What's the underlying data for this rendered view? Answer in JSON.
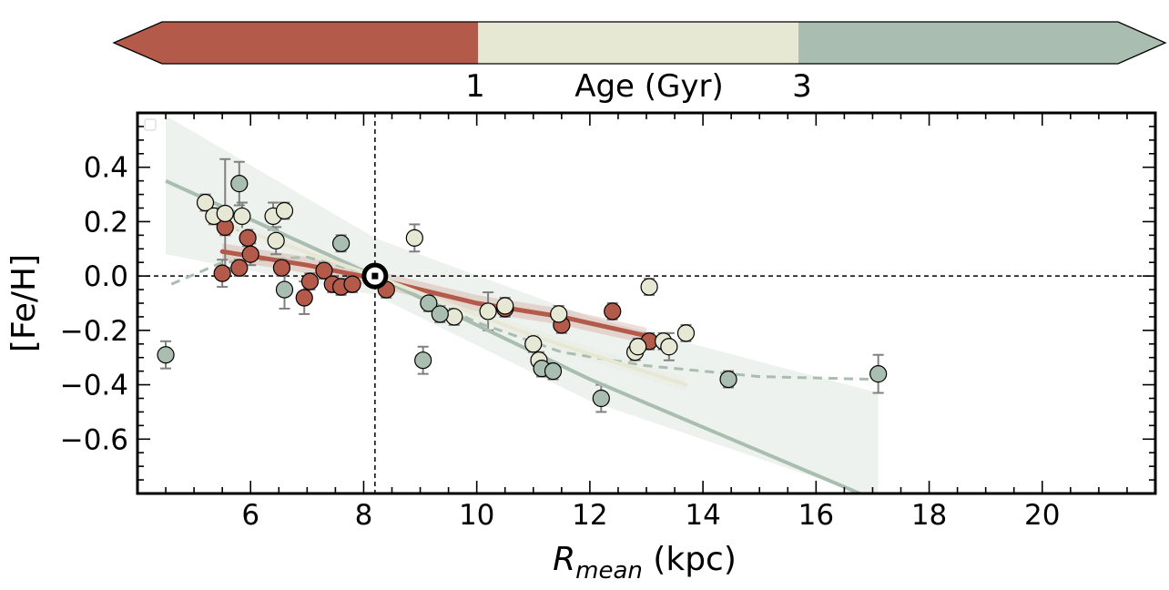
{
  "colors": {
    "young": "#b35a4a",
    "mid": "#e6e8d4",
    "old": "#a9bdb0",
    "band": "#eef2ee",
    "errorbar": "#808080"
  },
  "colorbar": {
    "ticks": [
      "1",
      "3"
    ],
    "label": "Age (Gyr)"
  },
  "chart_data": {
    "type": "scatter",
    "xlabel_main": "R",
    "xlabel_sub": "mean",
    "xlabel_unit": " (kpc)",
    "ylabel": "[Fe/H]",
    "xlim": [
      4.0,
      22.0
    ],
    "ylim": [
      -0.8,
      0.6
    ],
    "xticks": [
      6,
      8,
      10,
      12,
      14,
      16,
      18,
      20
    ],
    "yticks": [
      0.4,
      0.2,
      0.0,
      -0.2,
      -0.4,
      -0.6
    ],
    "ytick_labels": [
      "0.4",
      "0.2",
      "0.0",
      "−0.2",
      "−0.4",
      "−0.6"
    ],
    "sun": {
      "x": 8.2,
      "y": 0.0
    },
    "series": [
      {
        "color": "young",
        "points": [
          {
            "x": 5.5,
            "y": 0.01,
            "e": 0.05
          },
          {
            "x": 5.55,
            "y": 0.18,
            "e": 0.03
          },
          {
            "x": 5.8,
            "y": 0.03,
            "e": 0.03
          },
          {
            "x": 5.95,
            "y": 0.14,
            "e": 0.03
          },
          {
            "x": 6.0,
            "y": 0.08,
            "e": 0.04
          },
          {
            "x": 6.55,
            "y": 0.03,
            "e": 0.03
          },
          {
            "x": 6.95,
            "y": -0.08,
            "e": 0.06
          },
          {
            "x": 7.05,
            "y": -0.02,
            "e": 0.03
          },
          {
            "x": 7.3,
            "y": 0.02,
            "e": 0.03
          },
          {
            "x": 7.45,
            "y": -0.03,
            "e": 0.03
          },
          {
            "x": 7.6,
            "y": -0.04,
            "e": 0.03
          },
          {
            "x": 7.8,
            "y": -0.03,
            "e": 0.03
          },
          {
            "x": 8.4,
            "y": -0.05,
            "e": 0.03
          },
          {
            "x": 10.5,
            "y": -0.12,
            "e": 0.03
          },
          {
            "x": 11.5,
            "y": -0.18,
            "e": 0.03
          },
          {
            "x": 12.4,
            "y": -0.13,
            "e": 0.03
          },
          {
            "x": 13.05,
            "y": -0.24,
            "e": 0.03
          }
        ],
        "fit": [
          [
            5.5,
            0.09
          ],
          [
            7.0,
            0.04
          ],
          [
            8.2,
            -0.01
          ],
          [
            10.0,
            -0.1
          ],
          [
            11.5,
            -0.15
          ],
          [
            13.0,
            -0.22
          ]
        ]
      },
      {
        "color": "mid",
        "points": [
          {
            "x": 5.2,
            "y": 0.27,
            "e": 0.03
          },
          {
            "x": 5.35,
            "y": 0.22,
            "e": 0.03
          },
          {
            "x": 5.55,
            "y": 0.23,
            "e": 0.2
          },
          {
            "x": 5.85,
            "y": 0.22,
            "e": 0.05
          },
          {
            "x": 6.4,
            "y": 0.22,
            "e": 0.05
          },
          {
            "x": 6.45,
            "y": 0.13,
            "e": 0.05
          },
          {
            "x": 6.6,
            "y": 0.24,
            "e": 0.03
          },
          {
            "x": 8.9,
            "y": 0.14,
            "e": 0.05
          },
          {
            "x": 9.6,
            "y": -0.15,
            "e": 0.03
          },
          {
            "x": 10.2,
            "y": -0.13,
            "e": 0.07
          },
          {
            "x": 10.5,
            "y": -0.11,
            "e": 0.03
          },
          {
            "x": 11.0,
            "y": -0.25,
            "e": 0.03
          },
          {
            "x": 11.1,
            "y": -0.31,
            "e": 0.03
          },
          {
            "x": 11.45,
            "y": -0.14,
            "e": 0.03
          },
          {
            "x": 12.8,
            "y": -0.28,
            "e": 0.03
          },
          {
            "x": 12.85,
            "y": -0.26,
            "e": 0.03
          },
          {
            "x": 13.05,
            "y": -0.04,
            "e": 0.03
          },
          {
            "x": 13.3,
            "y": -0.24,
            "e": 0.03
          },
          {
            "x": 13.4,
            "y": -0.26,
            "e": 0.05
          },
          {
            "x": 13.7,
            "y": -0.21,
            "e": 0.03
          }
        ],
        "fit": [
          [
            5.3,
            0.21
          ],
          [
            8.2,
            0.0
          ],
          [
            11.0,
            -0.22
          ],
          [
            13.7,
            -0.4
          ]
        ]
      },
      {
        "color": "old",
        "points": [
          {
            "x": 4.5,
            "y": -0.29,
            "e": 0.05
          },
          {
            "x": 5.8,
            "y": 0.34,
            "e": 0.08
          },
          {
            "x": 6.6,
            "y": -0.05,
            "e": 0.07
          },
          {
            "x": 7.6,
            "y": 0.12,
            "e": 0.03
          },
          {
            "x": 9.05,
            "y": -0.31,
            "e": 0.05
          },
          {
            "x": 9.15,
            "y": -0.1,
            "e": 0.03
          },
          {
            "x": 9.35,
            "y": -0.14,
            "e": 0.03
          },
          {
            "x": 11.15,
            "y": -0.34,
            "e": 0.03
          },
          {
            "x": 11.35,
            "y": -0.35,
            "e": 0.03
          },
          {
            "x": 12.2,
            "y": -0.45,
            "e": 0.05
          },
          {
            "x": 14.45,
            "y": -0.38,
            "e": 0.03
          },
          {
            "x": 17.1,
            "y": -0.36,
            "e": 0.07
          }
        ],
        "fit": [
          [
            4.5,
            0.35
          ],
          [
            8.2,
            0.0
          ],
          [
            12.0,
            -0.38
          ],
          [
            17.0,
            -0.82
          ]
        ],
        "dashed_fit": [
          [
            4.6,
            -0.03
          ],
          [
            5.5,
            0.05
          ],
          [
            7.0,
            0.07
          ],
          [
            8.2,
            0.0
          ],
          [
            10.0,
            -0.17
          ],
          [
            11.5,
            -0.28
          ],
          [
            13.0,
            -0.33
          ],
          [
            15.0,
            -0.37
          ],
          [
            17.0,
            -0.38
          ]
        ],
        "band": [
          [
            4.5,
            0.59,
            0.08
          ],
          [
            8.2,
            0.14,
            -0.07
          ],
          [
            12.0,
            -0.15,
            -0.46
          ],
          [
            17.1,
            -0.43,
            -0.82
          ]
        ]
      }
    ]
  }
}
